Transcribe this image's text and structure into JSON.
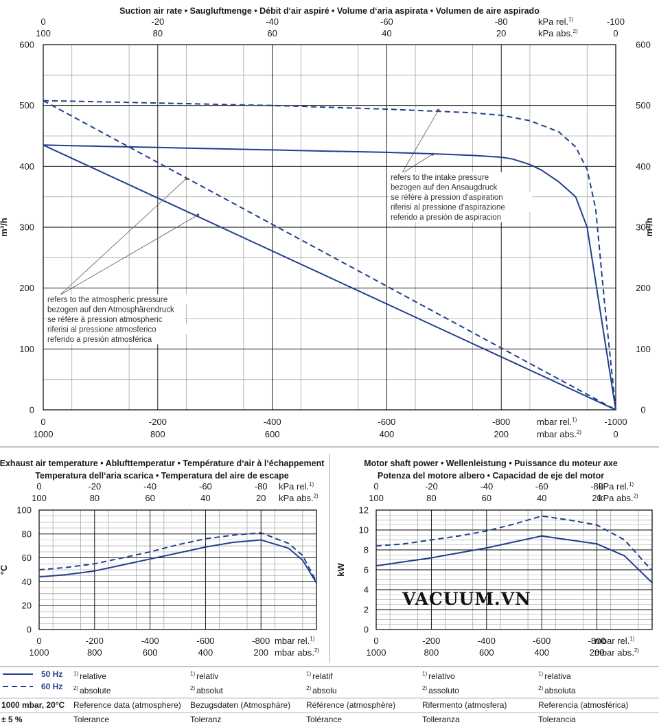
{
  "chart_data": [
    {
      "type": "line",
      "title": "Suction air rate • Saugluftmenge • Débit d‘air aspiré • Volume d‘aria aspirata • Volumen de aire aspirado",
      "ylabel": "m³/h",
      "ylim": [
        0,
        600
      ],
      "yticks": [
        "0",
        "100",
        "200",
        "300",
        "400",
        "500",
        "600"
      ],
      "x_bottom": {
        "label_rel": "mbar rel.",
        "label_abs": "mbar abs.",
        "sup_rel": "1)",
        "sup_abs": "2)",
        "rel": [
          "0",
          "-200",
          "-400",
          "-600",
          "-800",
          "-1000"
        ],
        "abs": [
          "1000",
          "800",
          "600",
          "400",
          "200",
          "0"
        ],
        "range": [
          0,
          -1000
        ]
      },
      "x_top": {
        "label_rel": "kPa rel.",
        "label_abs": "kPa abs.",
        "sup_rel": "1)",
        "sup_abs": "2)",
        "rel": [
          "0",
          "-20",
          "-40",
          "-60",
          "-80",
          "-100"
        ],
        "abs": [
          "100",
          "80",
          "60",
          "40",
          "20",
          "0"
        ]
      },
      "grid": true,
      "series": [
        {
          "hz": "50 Hz",
          "style": "solid",
          "x": [
            0,
            -100,
            -200,
            -300,
            -400,
            -500,
            -600,
            -700,
            -750,
            -800,
            -820,
            -850,
            -870,
            -900,
            -930,
            -950,
            -975,
            -1000
          ],
          "y": [
            435,
            433,
            431,
            429,
            427,
            425,
            423,
            420,
            418,
            415,
            412,
            403,
            394,
            375,
            350,
            300,
            150,
            0
          ]
        },
        {
          "hz": "60 Hz",
          "style": "dashed",
          "x": [
            0,
            -100,
            -200,
            -300,
            -400,
            -500,
            -600,
            -700,
            -750,
            -800,
            -850,
            -900,
            -930,
            -950,
            -965,
            -980,
            -1000
          ],
          "y": [
            508,
            506,
            504,
            502,
            500,
            497,
            494,
            490,
            488,
            484,
            475,
            457,
            432,
            395,
            330,
            180,
            0
          ]
        },
        {
          "hz": "50 Hz",
          "style": "solid",
          "x": [
            0,
            -1000
          ],
          "y": [
            435,
            0
          ]
        },
        {
          "hz": "60 Hz",
          "style": "dashed",
          "x": [
            0,
            -1000
          ],
          "y": [
            508,
            0
          ]
        }
      ],
      "annotations": [
        {
          "text": [
            "refers to the intake pressure",
            "bezogen auf den Ansaugdruck",
            "se réfère à pression d‘aspiration",
            "riferisi al pressione d‘aspirazione",
            "referido a presión de aspiracion"
          ],
          "points": [
            [
              -690,
              492
            ],
            [
              -680,
              420
            ]
          ]
        },
        {
          "text": [
            "refers to the atmospheric pressure",
            "bezogen auf den Atmosphärendruck",
            "se réfère à pression atmospheric",
            "riferisi al pressione atmosferico",
            "referido a presión atmosférica"
          ],
          "points": [
            [
              -250,
              380
            ],
            [
              -270,
              320
            ]
          ]
        }
      ]
    },
    {
      "type": "line",
      "title": [
        "Exhaust air temperature • Ablufttemperatur • Température d‘air à l‘échappement",
        "Temperatura dell‘aria scarica • Temperatura del aire de escape"
      ],
      "ylabel": "°C",
      "ylim": [
        0,
        100
      ],
      "yticks": [
        "0",
        "20",
        "40",
        "60",
        "80",
        "100"
      ],
      "x_bottom": {
        "label_rel": "mbar rel.",
        "label_abs": "mbar abs.",
        "sup_rel": "1)",
        "sup_abs": "2)",
        "rel": [
          "0",
          "-200",
          "-400",
          "-600",
          "-800"
        ],
        "abs": [
          "1000",
          "800",
          "600",
          "400",
          "200"
        ],
        "range": [
          0,
          -1000
        ]
      },
      "x_top": {
        "label_rel": "kPa rel.",
        "label_abs": "kPa abs.",
        "sup_rel": "1)",
        "sup_abs": "2)",
        "rel": [
          "0",
          "-20",
          "-40",
          "-60",
          "-80"
        ],
        "abs": [
          "100",
          "80",
          "60",
          "40",
          "20"
        ]
      },
      "grid": true,
      "series": [
        {
          "hz": "50 Hz",
          "style": "solid",
          "x": [
            0,
            -100,
            -200,
            -300,
            -400,
            -500,
            -600,
            -700,
            -800,
            -900,
            -950,
            -1000
          ],
          "y": [
            44,
            46,
            49,
            54,
            59,
            64,
            69,
            73,
            75,
            68,
            58,
            39
          ]
        },
        {
          "hz": "60 Hz",
          "style": "dashed",
          "x": [
            0,
            -100,
            -200,
            -300,
            -400,
            -500,
            -600,
            -700,
            -800,
            -900,
            -950,
            -1000
          ],
          "y": [
            50,
            52,
            55,
            60,
            65,
            71,
            76,
            79,
            81,
            72,
            62,
            40
          ]
        }
      ]
    },
    {
      "type": "line",
      "title": [
        "Motor shaft power • Wellenleistung • Puissance du moteur axe",
        "Potenza del motore albero • Capacidad de eje del motor"
      ],
      "ylabel": "kW",
      "ylim": [
        0,
        12
      ],
      "yticks": [
        "0",
        "2",
        "4",
        "6",
        "8",
        "10",
        "12"
      ],
      "x_bottom": {
        "label_rel": "mbar rel.",
        "label_abs": "mbar abs.",
        "sup_rel": "1)",
        "sup_abs": "2)",
        "rel": [
          "0",
          "-200",
          "-400",
          "-600",
          "-800"
        ],
        "abs": [
          "1000",
          "800",
          "600",
          "400",
          "200"
        ],
        "range": [
          0,
          -1000
        ]
      },
      "x_top": {
        "label_rel": "kPa rel.",
        "label_abs": "kPa abs.",
        "sup_rel": "1)",
        "sup_abs": "2)",
        "rel": [
          "0",
          "-20",
          "-40",
          "-60",
          "-80"
        ],
        "abs": [
          "100",
          "80",
          "60",
          "40",
          "20"
        ]
      },
      "grid": true,
      "series": [
        {
          "hz": "50 Hz",
          "style": "solid",
          "x": [
            0,
            -100,
            -200,
            -300,
            -400,
            -500,
            -600,
            -700,
            -800,
            -900,
            -1000
          ],
          "y": [
            6.4,
            6.8,
            7.2,
            7.7,
            8.2,
            8.8,
            9.4,
            9.0,
            8.6,
            7.4,
            4.7
          ]
        },
        {
          "hz": "60 Hz",
          "style": "dashed",
          "x": [
            0,
            -100,
            -200,
            -300,
            -400,
            -500,
            -600,
            -700,
            -800,
            -900,
            -1000
          ],
          "y": [
            8.4,
            8.6,
            9.0,
            9.4,
            9.9,
            10.6,
            11.4,
            11.0,
            10.5,
            9.0,
            5.9
          ]
        }
      ]
    }
  ],
  "watermark": "VACUUM.VN",
  "colors": {
    "line": "#1f3f8e",
    "grid": "#000000",
    "minor_grid": "#a6a6a6",
    "separator": "#a0a0a0"
  },
  "legend": {
    "items": [
      {
        "label": "50 Hz",
        "style": "solid"
      },
      {
        "label": "60 Hz",
        "style": "dashed"
      }
    ],
    "rows": [
      {
        "key": "",
        "sup": "1)",
        "cells": [
          "relative",
          "relativ",
          "relatif",
          "relativo",
          "relativa"
        ]
      },
      {
        "key": "",
        "sup": "2)",
        "cells": [
          "absolute",
          "absolut",
          "absolu",
          "assoluto",
          "absoluta"
        ]
      },
      {
        "key": "1000 mbar, 20°C",
        "sup": "",
        "cells": [
          "Reference data (atmosphere)",
          "Bezugsdaten (Atmosphäre)",
          "Référence (atmosphère)",
          "Rifermento (atmosfera)",
          "Referencia (atmosférica)"
        ]
      },
      {
        "key": "± 5 %",
        "sup": "",
        "cells": [
          "Tolerance",
          "Toleranz",
          "Tolérance",
          "Tolleranza",
          "Tolerancia"
        ]
      }
    ]
  }
}
